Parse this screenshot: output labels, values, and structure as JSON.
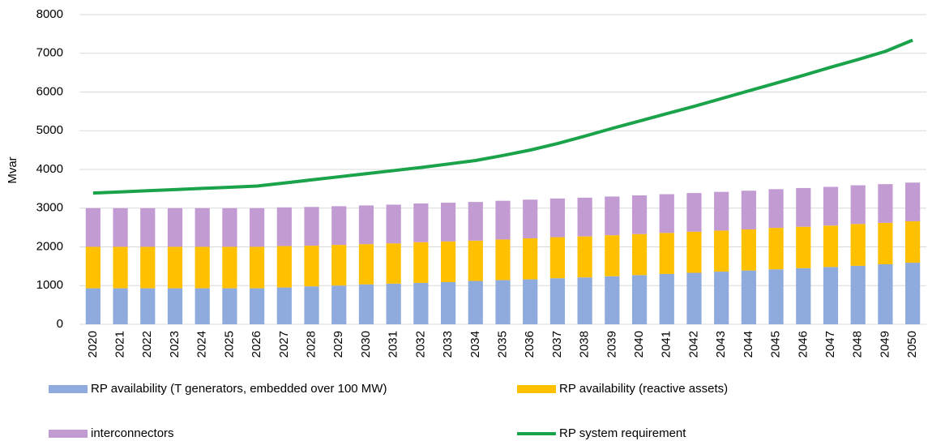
{
  "chart_data": {
    "type": "bar",
    "stacked": true,
    "y_label": "Mvar",
    "categories": [
      "2020",
      "2021",
      "2022",
      "2023",
      "2024",
      "2025",
      "2026",
      "2027",
      "2028",
      "2029",
      "2030",
      "2031",
      "2032",
      "2033",
      "2034",
      "2035",
      "2036",
      "2037",
      "2038",
      "2039",
      "2040",
      "2041",
      "2042",
      "2043",
      "2044",
      "2045",
      "2046",
      "2047",
      "2048",
      "2049",
      "2050"
    ],
    "series": [
      {
        "name": "RP availability (T generators, embedded over 100 MW)",
        "type": "bar",
        "color": "#8faadc",
        "values": [
          930,
          930,
          930,
          930,
          930,
          930,
          930,
          950,
          980,
          1000,
          1030,
          1050,
          1070,
          1090,
          1120,
          1140,
          1160,
          1190,
          1210,
          1240,
          1270,
          1300,
          1330,
          1360,
          1390,
          1420,
          1450,
          1480,
          1510,
          1550,
          1590
        ]
      },
      {
        "name": "RP availability (reactive assets)",
        "type": "bar",
        "color": "#ffc000",
        "values": [
          1070,
          1070,
          1070,
          1070,
          1070,
          1070,
          1070,
          1070,
          1050,
          1050,
          1040,
          1040,
          1050,
          1050,
          1040,
          1050,
          1060,
          1060,
          1060,
          1060,
          1060,
          1060,
          1060,
          1060,
          1060,
          1070,
          1070,
          1070,
          1080,
          1070,
          1070
        ]
      },
      {
        "name": "interconnectors",
        "type": "bar",
        "color": "#c39bd3",
        "values": [
          1000,
          1000,
          1000,
          1000,
          1000,
          1000,
          1000,
          1000,
          1000,
          1000,
          1000,
          1000,
          1000,
          1000,
          1000,
          1000,
          1000,
          1000,
          1000,
          1000,
          1000,
          1000,
          1000,
          1000,
          1000,
          1000,
          1000,
          1000,
          1000,
          1000,
          1000
        ]
      },
      {
        "name": "RP system requirement",
        "type": "line",
        "color": "#1aa34a",
        "values": [
          3390,
          3420,
          3450,
          3480,
          3510,
          3540,
          3570,
          3650,
          3730,
          3810,
          3890,
          3970,
          4050,
          4140,
          4230,
          4360,
          4500,
          4670,
          4860,
          5060,
          5250,
          5440,
          5630,
          5830,
          6030,
          6230,
          6430,
          6640,
          6840,
          7050,
          7340
        ]
      }
    ],
    "ylim": [
      0,
      8000
    ],
    "yticks": [
      0,
      1000,
      2000,
      3000,
      4000,
      5000,
      6000,
      7000,
      8000
    ],
    "grid": true
  }
}
